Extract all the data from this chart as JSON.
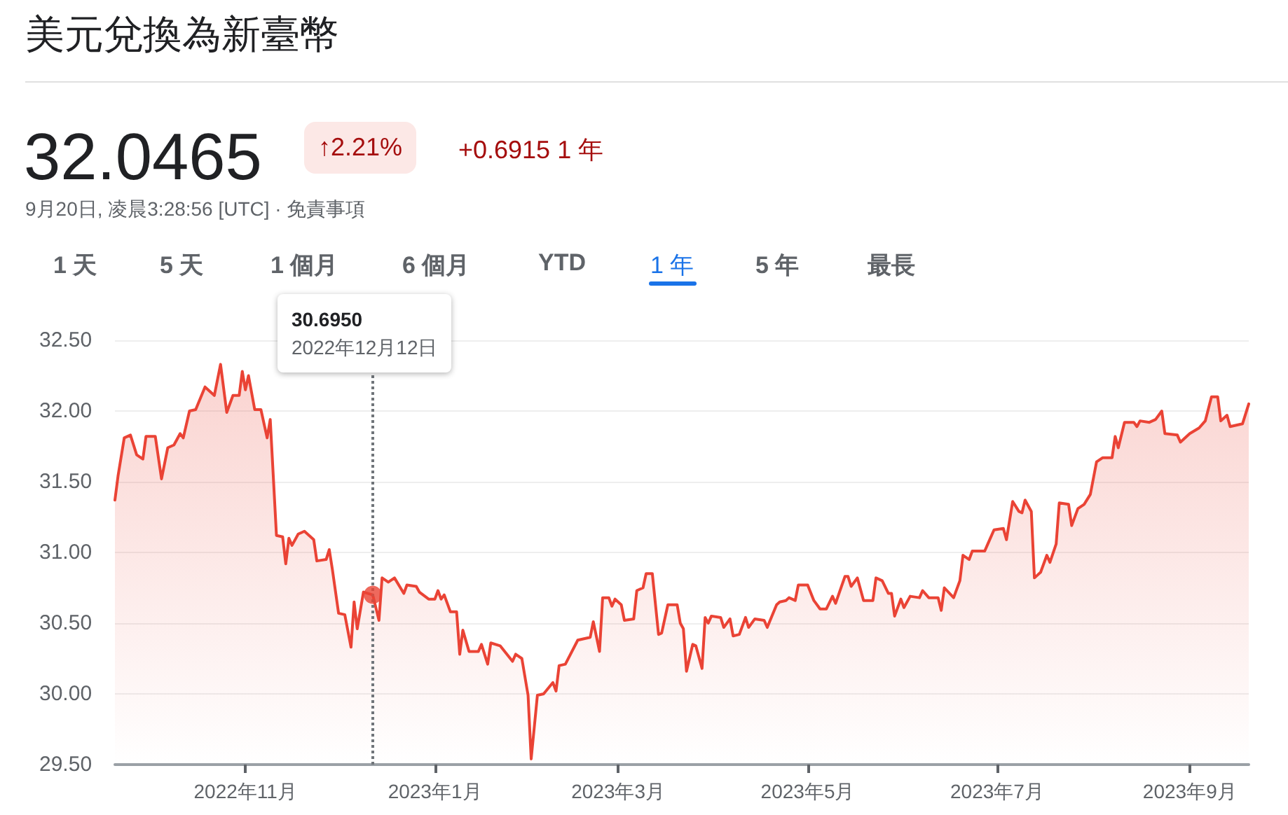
{
  "chart_data": {
    "type": "area",
    "title": "美元兌換為新臺幣",
    "annotations": [
      "32.0465",
      "↑2.21%",
      "+0.6915 1 年",
      "9月20日, 凌晨3:28:56 [UTC] · 免責事項",
      "1 天",
      "5 天",
      "1 個月",
      "6 個月",
      "YTD",
      "1 年",
      "5 年",
      "最長",
      "30.6950",
      "2022年12月12日"
    ],
    "color": "#ea4335",
    "marker": "none",
    "line_style": "solid",
    "grid": "y",
    "xlim": [
      "2022-09-20",
      "2023-09-20"
    ],
    "ylim": [
      29.5,
      32.5
    ],
    "xticks": [
      {
        "value": "2022-11-01",
        "label": "2022年11月"
      },
      {
        "value": "2023-01-01",
        "label": "2023年1月"
      },
      {
        "value": "2023-03-01",
        "label": "2023年3月"
      },
      {
        "value": "2023-05-01",
        "label": "2023年5月"
      },
      {
        "value": "2023-07-01",
        "label": "2023年7月"
      },
      {
        "value": "2023-09-01",
        "label": "2023年9月"
      }
    ],
    "yticks": [
      {
        "value": 29.5,
        "label": "29.50"
      },
      {
        "value": 30,
        "label": "30.00"
      },
      {
        "value": 30.5,
        "label": "30.50"
      },
      {
        "value": 31,
        "label": "31.00"
      },
      {
        "value": 31.5,
        "label": "31.50"
      },
      {
        "value": 32,
        "label": "32.00"
      },
      {
        "value": 32.5,
        "label": "32.50"
      }
    ],
    "ref_lines": [
      {
        "axis": "x",
        "value": "2022-12-12",
        "color": "#70757a",
        "line_style": "dotted"
      }
    ],
    "x": [
      "2022-09-20",
      "2022-09-21",
      "2022-09-23",
      "2022-09-25",
      "2022-09-27",
      "2022-09-29",
      "2022-09-30",
      "2022-10-03",
      "2022-10-05",
      "2022-10-07",
      "2022-10-09",
      "2022-10-11",
      "2022-10-12",
      "2022-10-14",
      "2022-10-16",
      "2022-10-19",
      "2022-10-22",
      "2022-10-24",
      "2022-10-26",
      "2022-10-28",
      "2022-10-30",
      "2022-10-31",
      "2022-11-01",
      "2022-11-02",
      "2022-11-04",
      "2022-11-06",
      "2022-11-08",
      "2022-11-09",
      "2022-11-11",
      "2022-11-13",
      "2022-11-14",
      "2022-11-15",
      "2022-11-16",
      "2022-11-18",
      "2022-11-20",
      "2022-11-23",
      "2022-11-24",
      "2022-11-27",
      "2022-11-28",
      "2022-11-29",
      "2022-12-01",
      "2022-12-03",
      "2022-12-05",
      "2022-12-06",
      "2022-12-07",
      "2022-12-09",
      "2022-12-12",
      "2022-12-14",
      "2022-12-15",
      "2022-12-17",
      "2022-12-19",
      "2022-12-22",
      "2022-12-23",
      "2022-12-26",
      "2022-12-27",
      "2022-12-30",
      "2023-01-01",
      "2023-01-02",
      "2023-01-03",
      "2023-01-04",
      "2023-01-06",
      "2023-01-08",
      "2023-01-09",
      "2023-01-10",
      "2023-01-12",
      "2023-01-15",
      "2023-01-16",
      "2023-01-18",
      "2023-01-19",
      "2023-01-22",
      "2023-01-26",
      "2023-01-27",
      "2023-01-29",
      "2023-01-31",
      "2023-02-01",
      "2023-02-03",
      "2023-02-05",
      "2023-02-08",
      "2023-02-09",
      "2023-02-10",
      "2023-02-12",
      "2023-02-16",
      "2023-02-20",
      "2023-02-21",
      "2023-02-23",
      "2023-02-24",
      "2023-02-26",
      "2023-02-27",
      "2023-02-28",
      "2023-03-02",
      "2023-03-03",
      "2023-03-06",
      "2023-03-07",
      "2023-03-09",
      "2023-03-10",
      "2023-03-12",
      "2023-03-14",
      "2023-03-15",
      "2023-03-17",
      "2023-03-20",
      "2023-03-21",
      "2023-03-22",
      "2023-03-23",
      "2023-03-25",
      "2023-03-26",
      "2023-03-28",
      "2023-03-29",
      "2023-03-30",
      "2023-03-31",
      "2023-04-03",
      "2023-04-04",
      "2023-04-06",
      "2023-04-07",
      "2023-04-09",
      "2023-04-11",
      "2023-04-12",
      "2023-04-14",
      "2023-04-17",
      "2023-04-18",
      "2023-04-21",
      "2023-04-22",
      "2023-04-24",
      "2023-04-25",
      "2023-04-27",
      "2023-04-28",
      "2023-05-01",
      "2023-05-03",
      "2023-05-05",
      "2023-05-07",
      "2023-05-09",
      "2023-05-10",
      "2023-05-13",
      "2023-05-14",
      "2023-05-15",
      "2023-05-17",
      "2023-05-19",
      "2023-05-22",
      "2023-05-23",
      "2023-05-25",
      "2023-05-27",
      "2023-05-28",
      "2023-05-29",
      "2023-05-31",
      "2023-06-01",
      "2023-06-03",
      "2023-06-06",
      "2023-06-07",
      "2023-06-09",
      "2023-06-12",
      "2023-06-13",
      "2023-06-14",
      "2023-06-17",
      "2023-06-19",
      "2023-06-20",
      "2023-06-22",
      "2023-06-23",
      "2023-06-27",
      "2023-06-28",
      "2023-06-30",
      "2023-07-03",
      "2023-07-04",
      "2023-07-06",
      "2023-07-08",
      "2023-07-09",
      "2023-07-10",
      "2023-07-12",
      "2023-07-13",
      "2023-07-15",
      "2023-07-17",
      "2023-07-18",
      "2023-07-20",
      "2023-07-21",
      "2023-07-24",
      "2023-07-25",
      "2023-07-27",
      "2023-07-29",
      "2023-07-31",
      "2023-08-02",
      "2023-08-04",
      "2023-08-07",
      "2023-08-08",
      "2023-08-09",
      "2023-08-11",
      "2023-08-14",
      "2023-08-15",
      "2023-08-16",
      "2023-08-19",
      "2023-08-21",
      "2023-08-23",
      "2023-08-24",
      "2023-08-28",
      "2023-08-29",
      "2023-09-01",
      "2023-09-04",
      "2023-09-06",
      "2023-09-08",
      "2023-09-10",
      "2023-09-11",
      "2023-09-13",
      "2023-09-14",
      "2023-09-18",
      "2023-09-20"
    ],
    "values": [
      31.37,
      31.54,
      31.81,
      31.83,
      31.69,
      31.66,
      31.82,
      31.82,
      31.52,
      31.74,
      31.76,
      31.84,
      31.81,
      32.0,
      32.01,
      32.17,
      32.11,
      32.33,
      31.99,
      32.11,
      32.11,
      32.28,
      32.15,
      32.25,
      32.01,
      32.01,
      31.81,
      31.94,
      31.12,
      31.11,
      30.92,
      31.1,
      31.05,
      31.13,
      31.15,
      31.09,
      30.94,
      30.95,
      31.02,
      30.88,
      30.57,
      30.56,
      30.33,
      30.65,
      30.46,
      30.72,
      30.7,
      30.52,
      30.82,
      30.79,
      30.82,
      30.71,
      30.77,
      30.76,
      30.72,
      30.67,
      30.67,
      30.73,
      30.67,
      30.7,
      30.58,
      30.58,
      30.28,
      30.45,
      30.3,
      30.3,
      30.35,
      30.21,
      30.36,
      30.34,
      30.23,
      30.28,
      30.25,
      29.99,
      29.54,
      29.99,
      30.0,
      30.08,
      30.02,
      30.2,
      30.21,
      30.38,
      30.4,
      30.51,
      30.3,
      30.68,
      30.68,
      30.62,
      30.67,
      30.63,
      30.52,
      30.53,
      30.73,
      30.75,
      30.85,
      30.85,
      30.42,
      30.43,
      30.63,
      30.63,
      30.5,
      30.46,
      30.16,
      30.35,
      30.34,
      30.18,
      30.54,
      30.5,
      30.55,
      30.54,
      30.47,
      30.53,
      30.41,
      30.42,
      30.54,
      30.47,
      30.53,
      30.52,
      30.47,
      30.63,
      30.65,
      30.66,
      30.68,
      30.66,
      30.77,
      30.77,
      30.66,
      30.6,
      30.6,
      30.69,
      30.64,
      30.83,
      30.83,
      30.76,
      30.82,
      30.66,
      30.66,
      30.82,
      30.8,
      30.71,
      30.71,
      30.55,
      30.67,
      30.61,
      30.69,
      30.68,
      30.73,
      30.68,
      30.68,
      30.59,
      30.75,
      30.68,
      30.8,
      30.98,
      30.95,
      31.01,
      31.01,
      31.06,
      31.16,
      31.17,
      31.09,
      31.36,
      31.29,
      31.28,
      31.37,
      31.29,
      30.82,
      30.86,
      30.98,
      30.93,
      31.06,
      31.35,
      31.34,
      31.19,
      31.31,
      31.34,
      31.41,
      31.64,
      31.67,
      31.67,
      31.82,
      31.74,
      31.92,
      31.92,
      31.89,
      31.93,
      31.92,
      31.94,
      32.0,
      31.84,
      31.83,
      31.78,
      31.84,
      31.88,
      31.93,
      32.1,
      32.1,
      31.93,
      31.97,
      31.89,
      31.91,
      32.05
    ]
  }
}
